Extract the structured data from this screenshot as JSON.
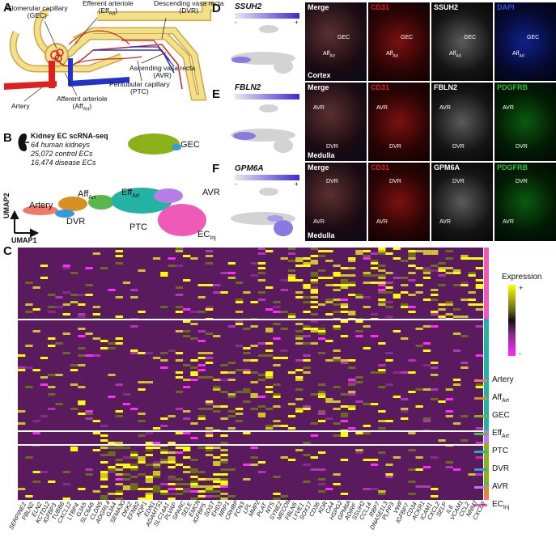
{
  "panels": {
    "A": "A",
    "B": "B",
    "C": "C",
    "D": "D",
    "E": "E",
    "F": "F"
  },
  "panelA": {
    "labels": {
      "gec": "Glomerular capillary",
      "gec_abbr": "(GEC)",
      "eff": "Efferent arteriole",
      "eff_abbr": "(Eff",
      "eff_sub": "Art",
      "dvr": "Descending vasa recta",
      "dvr_abbr": "(DVR)",
      "avr": "Ascending vasa recta",
      "avr_abbr": "(AVR)",
      "artery": "Artery",
      "aff": "Afferent arteriole",
      "aff_abbr": "(Aff",
      "aff_sub": "Art",
      "ptc": "Peritubular capillary",
      "ptc_abbr": "(PTC)"
    },
    "colors": {
      "artery": "#e0201c",
      "vein": "#2233cc",
      "tubule": "#f5e08a",
      "tubule_edge": "#c9a94c"
    }
  },
  "panelB": {
    "title": "Kidney EC scRNA-seq",
    "line1": "64 human kidneys",
    "line2": "25,072 control ECs",
    "line3": "16,474 disease ECs",
    "clusters": {
      "gec": "GEC",
      "aff": "Aff",
      "aff_sub": "Art",
      "eff": "Eff",
      "eff_sub": "Art",
      "artery": "Artery",
      "dvr": "DVR",
      "avr": "AVR",
      "ptc": "PTC",
      "ecinj": "EC",
      "ecinj_sub": "Inj"
    },
    "axes": {
      "umap1": "UMAP1",
      "umap2": "UMAP2"
    }
  },
  "panelD": {
    "gene": "SSUH2",
    "minus": "-",
    "plus": "+",
    "tiles": [
      "Merge",
      "CD31",
      "SSUH2",
      "DAPI"
    ],
    "tile_colors": [
      "#ffffff",
      "#e02020",
      "#ffffff",
      "#3050ff"
    ],
    "region": "Cortex",
    "ann": {
      "gec": "GEC",
      "aff": "Aff",
      "aff_sub": "Art"
    }
  },
  "panelE": {
    "gene": "FBLN2",
    "tiles": [
      "Merge",
      "CD31",
      "FBLN2",
      "PDGFRB"
    ],
    "tile_colors": [
      "#ffffff",
      "#e02020",
      "#ffffff",
      "#30c030"
    ],
    "region": "Medulla",
    "ann": {
      "avr": "AVR",
      "dvr": "DVR"
    }
  },
  "panelF": {
    "gene": "GPM6A",
    "minus": "-",
    "plus": "+",
    "tiles": [
      "Merge",
      "CD31",
      "GPM6A",
      "PDGFRB"
    ],
    "tile_colors": [
      "#ffffff",
      "#e02020",
      "#ffffff",
      "#30c030"
    ],
    "region": "Medulla",
    "ann": {
      "avr": "AVR",
      "dvr": "DVR"
    }
  },
  "panelC": {
    "legend_title": "Expression",
    "legend_plus": "+",
    "legend_minus": "-",
    "cell_types": [
      {
        "name": "Artery",
        "sub": "",
        "color": "#f07a6a"
      },
      {
        "name": "Aff",
        "sub": "Art",
        "color": "#d89020"
      },
      {
        "name": "GEC",
        "sub": "",
        "color": "#8cb21a"
      },
      {
        "name": "Eff",
        "sub": "Art",
        "color": "#58b84a"
      },
      {
        "name": "PTC",
        "sub": "",
        "color": "#22b3a4"
      },
      {
        "name": "DVR",
        "sub": "",
        "color": "#2f9be0"
      },
      {
        "name": "AVR",
        "sub": "",
        "color": "#b77ee6"
      },
      {
        "name": "EC",
        "sub": "Inj",
        "color": "#ef5ab8"
      }
    ],
    "genes": [
      "SERPINE2",
      "FBLN2",
      "ELN2",
      "KCTD12",
      "IGFBP3",
      "TUBB6",
      "CXCL12",
      "LTBP4",
      "GJA5",
      "SLC6A6",
      "CLDN5",
      "ADGRL4",
      "GJA4",
      "SEMA3G",
      "DKK2",
      "EFNB2",
      "AQP1",
      "EDN1",
      "ADAMTS1",
      "SLC14A1",
      "PLVAP",
      "SPARC",
      "SELE",
      "EMCN",
      "IGFBP5",
      "SOST",
      "EHD3",
      "NRP1",
      "CRHBP",
      "FCN3",
      "LPL",
      "MMP2",
      "PLAT",
      "NTS",
      "SYNE2",
      "MECOM",
      "FBLN5",
      "LYVE1",
      "SOX17",
      "CD36",
      "KDR",
      "CA4",
      "HSPG2",
      "GPM6A",
      "ADIRF",
      "SSUH2",
      "CCL14",
      "RBP7",
      "DNASE1L3",
      "PLPP3",
      "VWF",
      "IGFBP7",
      "CD34",
      "ACKR1",
      "ICAM1",
      "CXCL2",
      "SELP",
      "IL6",
      "VCAM1",
      "CCL2",
      "NNMT",
      "CXCL9"
    ]
  }
}
